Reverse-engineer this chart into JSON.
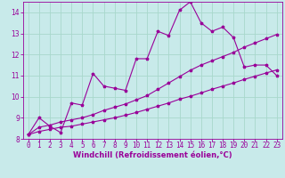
{
  "background_color": "#c8eaea",
  "grid_color": "#a8d8cc",
  "line_color": "#990099",
  "marker": "*",
  "xlabel": "Windchill (Refroidissement éolien,°C)",
  "xlabel_fontsize": 6.0,
  "tick_fontsize": 5.5,
  "xlim": [
    -0.5,
    23.5
  ],
  "ylim": [
    8,
    14.5
  ],
  "yticks": [
    8,
    9,
    10,
    11,
    12,
    13,
    14
  ],
  "xticks": [
    0,
    1,
    2,
    3,
    4,
    5,
    6,
    7,
    8,
    9,
    10,
    11,
    12,
    13,
    14,
    15,
    16,
    17,
    18,
    19,
    20,
    21,
    22,
    23
  ],
  "series1_x": [
    0,
    1,
    2,
    3,
    4,
    5,
    6,
    7,
    8,
    9,
    10,
    11,
    12,
    13,
    14,
    15,
    16,
    17,
    18,
    19,
    20,
    21,
    22,
    23
  ],
  "series1_y": [
    8.2,
    9.0,
    8.6,
    8.3,
    9.7,
    9.6,
    11.1,
    10.5,
    10.4,
    10.3,
    11.8,
    11.8,
    13.1,
    12.9,
    14.1,
    14.5,
    13.5,
    13.1,
    13.3,
    12.8,
    11.4,
    11.5,
    11.5,
    11.0
  ],
  "series2_x": [
    0,
    1,
    2,
    3,
    4,
    5,
    6,
    7,
    8,
    9,
    10,
    11,
    12,
    13,
    14,
    15,
    16,
    17,
    18,
    19,
    20,
    21,
    22,
    23
  ],
  "series2_y": [
    8.2,
    8.55,
    8.65,
    8.8,
    8.9,
    9.0,
    9.15,
    9.35,
    9.5,
    9.65,
    9.85,
    10.05,
    10.35,
    10.65,
    10.95,
    11.25,
    11.5,
    11.7,
    11.9,
    12.1,
    12.35,
    12.55,
    12.75,
    12.95
  ],
  "series3_x": [
    0,
    1,
    2,
    3,
    4,
    5,
    6,
    7,
    8,
    9,
    10,
    11,
    12,
    13,
    14,
    15,
    16,
    17,
    18,
    19,
    20,
    21,
    22,
    23
  ],
  "series3_y": [
    8.2,
    8.35,
    8.45,
    8.55,
    8.6,
    8.7,
    8.8,
    8.9,
    9.0,
    9.12,
    9.25,
    9.4,
    9.55,
    9.7,
    9.88,
    10.02,
    10.18,
    10.35,
    10.5,
    10.65,
    10.82,
    10.97,
    11.12,
    11.27
  ]
}
